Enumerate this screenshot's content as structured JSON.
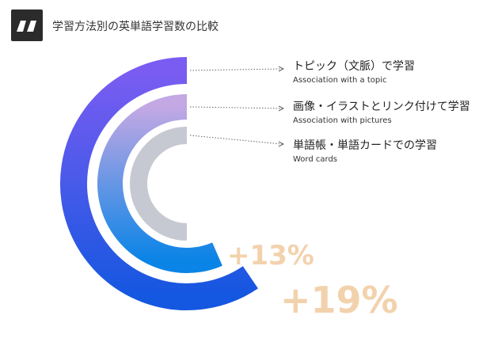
{
  "header": {
    "title": "学習方法別の英単語学習数の比較",
    "icon": "quote-icon"
  },
  "chart_data": {
    "type": "radial-bar",
    "title": "学習方法別の英単語学習数の比較",
    "series": [
      {
        "name": "トピック（文脈）で学習",
        "name_en": "Association with a topic",
        "relative_value": 1.19,
        "label": "+19%",
        "colors": [
          "#7b5cf2",
          "#1457e0"
        ]
      },
      {
        "name": "画像・イラストとリンク付けて学習",
        "name_en": "Association with pictures",
        "relative_value": 1.13,
        "label": "+13%",
        "colors": [
          "#c3a8e4",
          "#0a84e6"
        ]
      },
      {
        "name": "単語帳・単語カードでの学習",
        "name_en": "Word cards",
        "relative_value": 1.0,
        "label": "",
        "colors": [
          "#c6c9d1",
          "#c6c9d1"
        ]
      }
    ],
    "label_color": "#f2d2ad"
  }
}
